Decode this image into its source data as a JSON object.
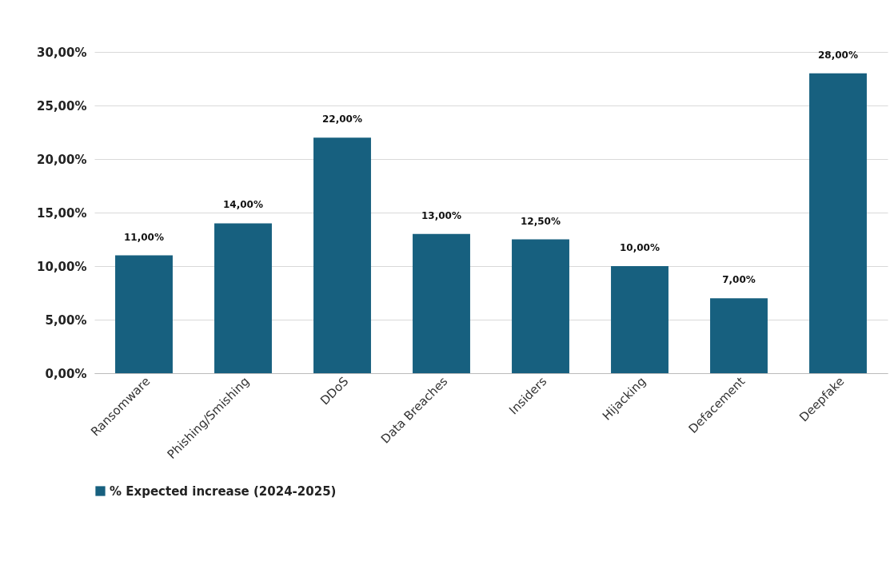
{
  "chart_data": {
    "type": "bar",
    "categories": [
      "Ransomware",
      "Phishing/Smishing",
      "DDoS",
      "Data Breaches",
      "Insiders",
      "Hijacking",
      "Defacement",
      "Deepfake"
    ],
    "series": [
      {
        "name": "% Expected increase (2024-2025)",
        "color": "#17607f",
        "values": [
          11,
          14,
          22,
          13,
          12.5,
          10,
          7,
          28
        ],
        "value_labels": [
          "11,00%",
          "14,00%",
          "22,00%",
          "13,00%",
          "12,50%",
          "10,00%",
          "7,00%",
          "28,00%"
        ]
      }
    ],
    "ylim": [
      0,
      30
    ],
    "yticks": [
      {
        "value": 0,
        "label": "0,00%"
      },
      {
        "value": 5,
        "label": "5,00%"
      },
      {
        "value": 10,
        "label": "10,00%"
      },
      {
        "value": 15,
        "label": "15,00%"
      },
      {
        "value": 20,
        "label": "20,00%"
      },
      {
        "value": 25,
        "label": "25,00%"
      },
      {
        "value": 30,
        "label": "30,00%"
      }
    ],
    "grid": "y",
    "legend": "bottom"
  }
}
